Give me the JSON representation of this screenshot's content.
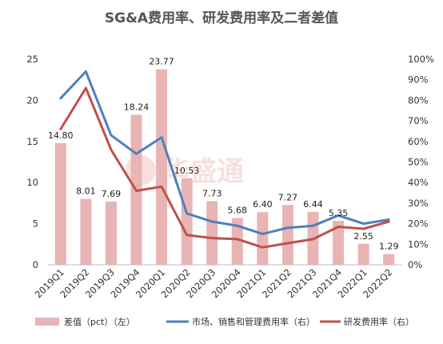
{
  "chart_data": {
    "type": "bar",
    "title": "SG&A费用率、研发费用率及二者差值",
    "categories": [
      "2019Q1",
      "2019Q2",
      "2019Q3",
      "2019Q4",
      "2020Q1",
      "2020Q2",
      "2020Q3",
      "2020Q4",
      "2021Q1",
      "2021Q2",
      "2021Q3",
      "2021Q4",
      "2022Q1",
      "2022Q2"
    ],
    "y_left": {
      "ylim": [
        0,
        25
      ],
      "ticks": [
        0,
        5,
        10,
        15,
        20,
        25
      ]
    },
    "y_right": {
      "ylim": [
        0,
        100
      ],
      "ticks": [
        0,
        10,
        20,
        30,
        40,
        50,
        60,
        70,
        80,
        90,
        100
      ],
      "tick_labels": [
        "0%",
        "10%",
        "20%",
        "30%",
        "40%",
        "50%",
        "60%",
        "70%",
        "80%",
        "90%",
        "100%"
      ]
    },
    "series": [
      {
        "name": "差值（pct）（左）",
        "type": "bar",
        "axis": "left",
        "color": "#e8b4b4",
        "values": [
          14.8,
          8.01,
          7.69,
          18.24,
          23.77,
          10.53,
          7.73,
          5.68,
          6.4,
          7.27,
          6.44,
          5.35,
          2.55,
          1.29
        ],
        "labels": [
          "14.80",
          "8.01",
          "7.69",
          "18.24",
          "23.77",
          "10.53",
          "7.73",
          "5.68",
          "6.40",
          "7.27",
          "6.44",
          "5.35",
          "2.55",
          "1.29"
        ]
      },
      {
        "name": "市场、销售和管理费用率（右）",
        "type": "line",
        "axis": "right",
        "color": "#4f7fbf",
        "values": [
          81,
          94,
          63,
          54,
          62,
          25,
          21,
          19,
          15,
          18,
          19,
          24,
          20,
          22
        ]
      },
      {
        "name": "研发费用率（右）",
        "type": "line",
        "axis": "right",
        "color": "#c0504d",
        "values": [
          66,
          86,
          56,
          36,
          38,
          14.5,
          13,
          12.5,
          8.5,
          10.5,
          12.5,
          18.5,
          17.5,
          21
        ]
      }
    ],
    "legend_position": "bottom",
    "grid": false
  },
  "watermark": {
    "text": "华盛通"
  }
}
